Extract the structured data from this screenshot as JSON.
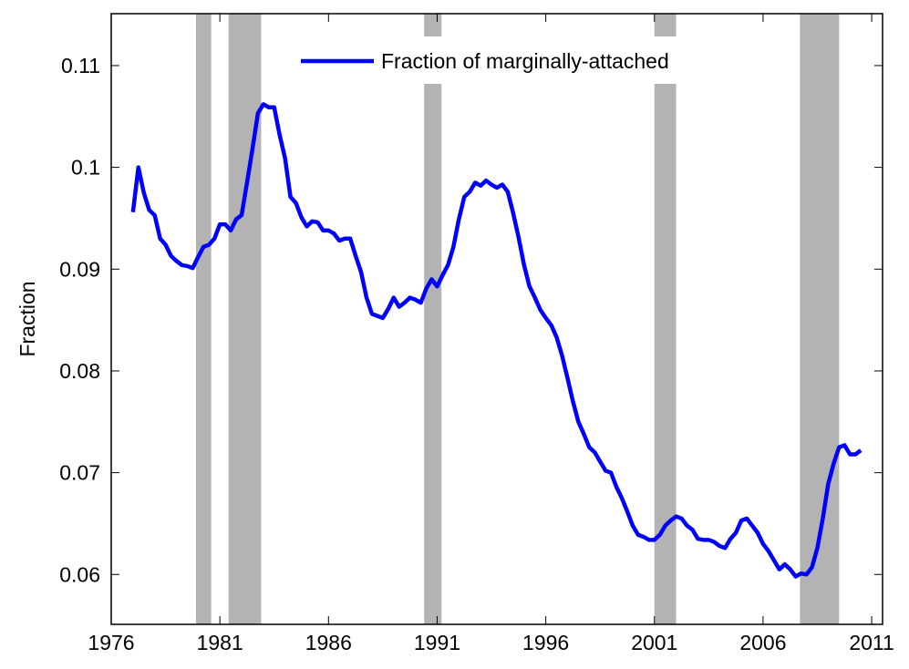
{
  "chart_data": {
    "type": "line",
    "ylabel": "Fraction",
    "xlim": [
      1976,
      2011.5
    ],
    "ylim": [
      0.0551,
      0.1151
    ],
    "xticks": [
      1976,
      1981,
      1986,
      1991,
      1996,
      2001,
      2006,
      2011
    ],
    "yticks": [
      0.06,
      0.07,
      0.08,
      0.09,
      0.1,
      0.11
    ],
    "legend": "top",
    "shade_color": "#b3b3b3",
    "shaded_regions": [
      [
        1979.9,
        1980.6
      ],
      [
        1981.4,
        1982.9
      ],
      [
        1990.4,
        1991.2
      ],
      [
        2001.0,
        2002.0
      ],
      [
        2007.7,
        2009.5
      ]
    ],
    "x": [
      1977,
      1977.25,
      1977.5,
      1977.75,
      1978,
      1978.25,
      1978.5,
      1978.75,
      1979,
      1979.25,
      1979.5,
      1979.75,
      1980,
      1980.25,
      1980.5,
      1980.75,
      1981,
      1981.25,
      1981.5,
      1981.75,
      1982,
      1982.25,
      1982.5,
      1982.75,
      1983,
      1983.25,
      1983.5,
      1983.75,
      1984,
      1984.25,
      1984.5,
      1984.75,
      1985,
      1985.25,
      1985.5,
      1985.75,
      1986,
      1986.25,
      1986.5,
      1986.75,
      1987,
      1987.25,
      1987.5,
      1987.75,
      1988,
      1988.25,
      1988.5,
      1988.75,
      1989,
      1989.25,
      1989.5,
      1989.75,
      1990,
      1990.25,
      1990.5,
      1990.75,
      1991,
      1991.25,
      1991.5,
      1991.75,
      1992,
      1992.25,
      1992.5,
      1992.75,
      1993,
      1993.25,
      1993.5,
      1993.75,
      1994,
      1994.25,
      1994.5,
      1994.75,
      1995,
      1995.25,
      1995.5,
      1995.75,
      1996,
      1996.25,
      1996.5,
      1996.75,
      1997,
      1997.25,
      1997.5,
      1997.75,
      1998,
      1998.25,
      1998.5,
      1998.75,
      1999,
      1999.25,
      1999.5,
      1999.75,
      2000,
      2000.25,
      2000.5,
      2000.75,
      2001,
      2001.25,
      2001.5,
      2001.75,
      2002,
      2002.25,
      2002.5,
      2002.75,
      2003,
      2003.25,
      2003.5,
      2003.75,
      2004,
      2004.25,
      2004.5,
      2004.75,
      2005,
      2005.25,
      2005.5,
      2005.75,
      2006,
      2006.25,
      2006.5,
      2006.75,
      2007,
      2007.25,
      2007.5,
      2007.75,
      2008,
      2008.25,
      2008.5,
      2008.75,
      2009,
      2009.25,
      2009.5,
      2009.75,
      2010,
      2010.25,
      2010.5
    ],
    "series": [
      {
        "name": "Fraction of marginally-attached",
        "color": "#0000ff",
        "values": [
          0.0956,
          0.1,
          0.0975,
          0.0958,
          0.0953,
          0.093,
          0.0924,
          0.0913,
          0.0908,
          0.0904,
          0.0903,
          0.0901,
          0.0912,
          0.0922,
          0.0924,
          0.093,
          0.0944,
          0.0944,
          0.0938,
          0.0949,
          0.0953,
          0.0985,
          0.1018,
          0.1053,
          0.1062,
          0.1059,
          0.1059,
          0.1032,
          0.1009,
          0.0971,
          0.0965,
          0.0951,
          0.0942,
          0.0947,
          0.0946,
          0.0938,
          0.0938,
          0.0935,
          0.0928,
          0.093,
          0.093,
          0.0913,
          0.0897,
          0.0872,
          0.0856,
          0.0854,
          0.0852,
          0.0861,
          0.0872,
          0.0863,
          0.0867,
          0.0872,
          0.087,
          0.0867,
          0.0881,
          0.089,
          0.0883,
          0.0894,
          0.0904,
          0.0922,
          0.0949,
          0.0971,
          0.0976,
          0.0985,
          0.0982,
          0.0987,
          0.0983,
          0.098,
          0.0983,
          0.0976,
          0.0955,
          0.0931,
          0.0904,
          0.0883,
          0.0872,
          0.086,
          0.0852,
          0.0845,
          0.0833,
          0.0815,
          0.0793,
          0.077,
          0.075,
          0.0738,
          0.0725,
          0.072,
          0.0711,
          0.0702,
          0.07,
          0.0686,
          0.0675,
          0.0662,
          0.0648,
          0.0639,
          0.0637,
          0.0634,
          0.0634,
          0.0639,
          0.0648,
          0.0653,
          0.0657,
          0.0655,
          0.0648,
          0.0644,
          0.0635,
          0.0634,
          0.0634,
          0.0632,
          0.0628,
          0.0626,
          0.0635,
          0.0641,
          0.0653,
          0.0655,
          0.0648,
          0.0641,
          0.063,
          0.0623,
          0.0614,
          0.0605,
          0.061,
          0.0605,
          0.0598,
          0.0601,
          0.06,
          0.0607,
          0.0626,
          0.0655,
          0.0689,
          0.0709,
          0.0725,
          0.0727,
          0.0718,
          0.0718,
          0.0722
        ]
      }
    ]
  }
}
